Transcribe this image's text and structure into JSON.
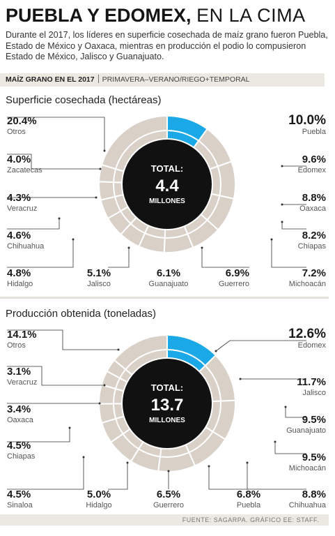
{
  "header": {
    "title_bold": "PUEBLA Y EDOMEX,",
    "title_light": "EN LA CIMA",
    "subtitle": "Durante el 2017, los líderes en superficie cosechada de maíz grano fueron Puebla, Estado de México y Oaxaca, mientras en producción el podio lo compusieron Estado de México, Jalisco y Guanajuato.",
    "tag_bold": "MAÍZ GRANO EN EL 2017",
    "tag_text": "PRIMAVERA–VERANO/RIEGO+TEMPORAL"
  },
  "colors": {
    "highlight": "#1ba8e6",
    "segment": "#d9d1c8",
    "center": "#111111",
    "divider": "#ffffff"
  },
  "source": "FUENTE: SAGARPA. GRÁFICO EE: STAFF.",
  "chart_data": [
    {
      "type": "pie",
      "title": "Superficie cosechada (hectáreas)",
      "center_label": "TOTAL:",
      "center_value": "4.4",
      "center_unit": "MILLONES",
      "highlight_index": 0,
      "slices": [
        {
          "name": "Puebla",
          "value": 10.0,
          "label": "10.0%"
        },
        {
          "name": "Edomex",
          "value": 9.6,
          "label": "9.6%"
        },
        {
          "name": "Oaxaca",
          "value": 8.8,
          "label": "8.8%"
        },
        {
          "name": "Chiapas",
          "value": 8.2,
          "label": "8.2%"
        },
        {
          "name": "Michoacán",
          "value": 7.2,
          "label": "7.2%"
        },
        {
          "name": "Guerrero",
          "value": 6.9,
          "label": "6.9%"
        },
        {
          "name": "Guanajuato",
          "value": 6.1,
          "label": "6.1%"
        },
        {
          "name": "Jalisco",
          "value": 5.1,
          "label": "5.1%"
        },
        {
          "name": "Hidalgo",
          "value": 4.8,
          "label": "4.8%"
        },
        {
          "name": "Chihuahua",
          "value": 4.6,
          "label": "4.6%"
        },
        {
          "name": "Veracruz",
          "value": 4.3,
          "label": "4.3%"
        },
        {
          "name": "Zacatecas",
          "value": 4.0,
          "label": "4.0%"
        },
        {
          "name": "Otros",
          "value": 20.4,
          "label": "20.4%"
        }
      ]
    },
    {
      "type": "pie",
      "title": "Producción obtenida (toneladas)",
      "center_label": "TOTAL:",
      "center_value": "13.7",
      "center_unit": "MILLONES",
      "highlight_index": 0,
      "slices": [
        {
          "name": "Edomex",
          "value": 12.6,
          "label": "12.6%"
        },
        {
          "name": "Jalisco",
          "value": 11.7,
          "label": "11.7%"
        },
        {
          "name": "Guanajuato",
          "value": 9.5,
          "label": "9.5%"
        },
        {
          "name": "Michoacán",
          "value": 9.5,
          "label": "9.5%"
        },
        {
          "name": "Chihuahua",
          "value": 8.8,
          "label": "8.8%"
        },
        {
          "name": "Puebla",
          "value": 6.8,
          "label": "6.8%"
        },
        {
          "name": "Guerrero",
          "value": 6.5,
          "label": "6.5%"
        },
        {
          "name": "Hidalgo",
          "value": 5.0,
          "label": "5.0%"
        },
        {
          "name": "Sinaloa",
          "value": 4.5,
          "label": "4.5%"
        },
        {
          "name": "Chiapas",
          "value": 4.5,
          "label": "4.5%"
        },
        {
          "name": "Oaxaca",
          "value": 3.4,
          "label": "3.4%"
        },
        {
          "name": "Veracruz",
          "value": 3.1,
          "label": "3.1%"
        },
        {
          "name": "Otros",
          "value": 14.1,
          "label": "14.1%"
        }
      ]
    }
  ]
}
